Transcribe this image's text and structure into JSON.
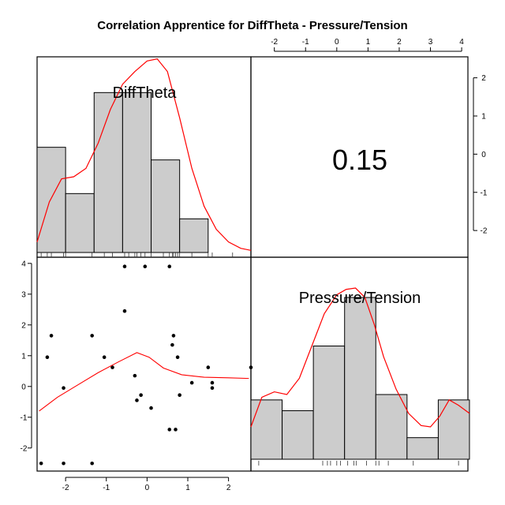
{
  "chart_data": {
    "type": "pairs",
    "title": "Correlation Apprentice for DiffTheta - Pressure/Tension",
    "variables": [
      "DiffTheta",
      "Pressure/Tension"
    ],
    "correlation": "0.15",
    "x_ticks": [
      -2,
      -1,
      0,
      1,
      2
    ],
    "y_ticks": [
      -2,
      -1,
      0,
      1,
      2,
      3,
      4
    ],
    "top_ticks": [
      -2,
      -1,
      0,
      1,
      2,
      3,
      4
    ],
    "right_ticks": [
      -2,
      -1,
      0,
      1,
      2
    ],
    "xlim": [
      -2.7,
      2.55
    ],
    "ylim": [
      -2.75,
      4.2
    ],
    "hist_difftheta": {
      "breaks": [
        -2.7,
        -2,
        -1.3,
        -0.6,
        0.1,
        0.8,
        1.5,
        2.2
      ],
      "counts": [
        2.5,
        1.4,
        3.8,
        3.8,
        2.2,
        0.8,
        0
      ],
      "count_max": 4.5
    },
    "hist_pressure": {
      "breaks": [
        -2.75,
        -1.75,
        -0.75,
        0.25,
        1.25,
        2.25,
        3.25,
        4.25
      ],
      "counts": [
        2.2,
        1.8,
        4.2,
        6.0,
        2.4,
        0.8,
        2.2
      ],
      "count_max": 7.2
    },
    "points": [
      [
        -2.6,
        -2.5
      ],
      [
        -2.05,
        -2.5
      ],
      [
        -1.35,
        -2.5
      ],
      [
        -0.55,
        3.9
      ],
      [
        -0.05,
        3.9
      ],
      [
        0.55,
        3.9
      ],
      [
        -0.55,
        2.45
      ],
      [
        -2.35,
        1.65
      ],
      [
        -1.35,
        1.65
      ],
      [
        0.65,
        1.65
      ],
      [
        0.62,
        1.35
      ],
      [
        -2.45,
        0.95
      ],
      [
        -1.05,
        0.95
      ],
      [
        0.75,
        0.95
      ],
      [
        -0.85,
        0.62
      ],
      [
        1.5,
        0.62
      ],
      [
        2.55,
        0.62
      ],
      [
        -0.3,
        0.35
      ],
      [
        1.1,
        0.12
      ],
      [
        1.6,
        0.12
      ],
      [
        -2.05,
        -0.05
      ],
      [
        1.6,
        -0.05
      ],
      [
        -0.15,
        -0.28
      ],
      [
        0.8,
        -0.28
      ],
      [
        -0.25,
        -0.45
      ],
      [
        0.1,
        -0.7
      ],
      [
        0.55,
        -1.4
      ],
      [
        0.7,
        -1.4
      ]
    ],
    "scatter_smooth": [
      [
        -2.65,
        -0.8
      ],
      [
        -2.2,
        -0.35
      ],
      [
        -1.7,
        0.05
      ],
      [
        -1.2,
        0.45
      ],
      [
        -0.7,
        0.8
      ],
      [
        -0.25,
        1.1
      ],
      [
        0.05,
        0.95
      ],
      [
        0.4,
        0.6
      ],
      [
        0.85,
        0.38
      ],
      [
        1.4,
        0.3
      ],
      [
        2.0,
        0.28
      ],
      [
        2.5,
        0.26
      ]
    ],
    "density_difftheta": [
      [
        -2.7,
        0.25
      ],
      [
        -2.4,
        1.2
      ],
      [
        -2.1,
        1.75
      ],
      [
        -1.8,
        1.8
      ],
      [
        -1.5,
        2.0
      ],
      [
        -1.2,
        2.6
      ],
      [
        -0.9,
        3.4
      ],
      [
        -0.6,
        4.0
      ],
      [
        -0.3,
        4.3
      ],
      [
        0.0,
        4.55
      ],
      [
        0.25,
        4.6
      ],
      [
        0.5,
        4.3
      ],
      [
        0.8,
        3.2
      ],
      [
        1.1,
        2.0
      ],
      [
        1.4,
        1.1
      ],
      [
        1.7,
        0.55
      ],
      [
        2.0,
        0.25
      ],
      [
        2.3,
        0.1
      ],
      [
        2.55,
        0.05
      ]
    ],
    "density_pressure": [
      [
        -2.75,
        1.2
      ],
      [
        -2.4,
        2.3
      ],
      [
        -2.0,
        2.5
      ],
      [
        -1.6,
        2.4
      ],
      [
        -1.2,
        3.0
      ],
      [
        -0.8,
        4.2
      ],
      [
        -0.4,
        5.4
      ],
      [
        0.0,
        6.1
      ],
      [
        0.3,
        6.3
      ],
      [
        0.6,
        6.35
      ],
      [
        0.9,
        6.0
      ],
      [
        1.2,
        5.0
      ],
      [
        1.5,
        3.8
      ],
      [
        1.9,
        2.6
      ],
      [
        2.3,
        1.7
      ],
      [
        2.7,
        1.25
      ],
      [
        3.0,
        1.2
      ],
      [
        3.3,
        1.6
      ],
      [
        3.6,
        2.2
      ],
      [
        3.9,
        2.0
      ],
      [
        4.25,
        1.7
      ]
    ],
    "rug_difftheta": [
      -2.6,
      -2.45,
      -2.35,
      -2.05,
      -2.0,
      -1.35,
      -1.05,
      -0.85,
      -0.55,
      -0.45,
      -0.3,
      -0.25,
      -0.15,
      -0.05,
      0.1,
      0.4,
      0.55,
      0.62,
      0.65,
      0.7,
      0.75,
      0.8,
      1.1,
      1.5,
      1.6,
      2.1
    ],
    "rug_pressure": [
      -2.5,
      1.25,
      -0.45,
      -0.3,
      -0.2,
      0.0,
      0.12,
      0.35,
      0.55,
      0.62,
      0.95,
      1.35,
      1.65,
      2.45,
      3.9
    ]
  }
}
